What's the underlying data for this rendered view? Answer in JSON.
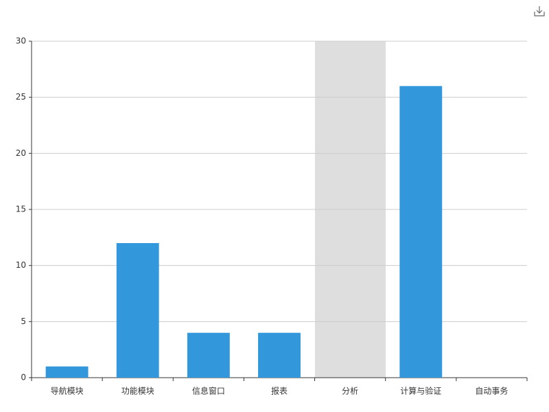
{
  "chart_data": {
    "type": "bar",
    "categories": [
      "导航模块",
      "功能模块",
      "信息窗口",
      "报表",
      "分析",
      "计算与验证",
      "自动事务"
    ],
    "values": [
      1,
      12,
      4,
      4,
      0,
      26,
      0
    ],
    "color": "#3398db",
    "ylim": [
      0,
      30
    ],
    "yticks": [
      0,
      5,
      10,
      15,
      20,
      25,
      30
    ],
    "grid": true
  }
}
